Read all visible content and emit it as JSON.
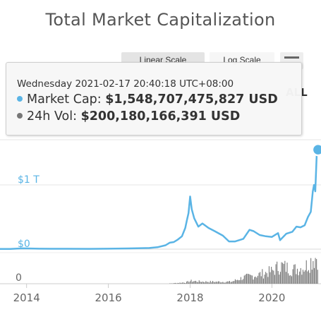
{
  "title": "Total Market Capitalization",
  "controls": {
    "linear_label": "Linear Scale",
    "log_label": "Log Scale",
    "range_label": "ALL"
  },
  "tooltip": {
    "date": "Wednesday 2021-02-17 20:40:18 UTC+08:00",
    "series1_label": "Market Cap:",
    "series1_value": "$1,548,707,475,827 USD",
    "series2_label": "24h Vol:",
    "series2_value": "$200,180,166,391 USD"
  },
  "colors": {
    "market_cap": "#5ab4e5",
    "volume": "#777777",
    "title": "#555555"
  },
  "chart_data": {
    "type": "line",
    "title": "Total Market Capitalization",
    "xlabel": "",
    "ylabel": "",
    "x_ticks": [
      "2014",
      "2016",
      "2018",
      "2020"
    ],
    "y_ticks": [
      "$0",
      "$1 T"
    ],
    "volume_y_ticks": [
      "0"
    ],
    "xlim": [
      2013.35,
      2021.2
    ],
    "ylim_trillions": [
      0,
      1.75
    ],
    "grid": true,
    "legend": "none",
    "series": [
      {
        "name": "Market Cap",
        "unit": "USD trillions",
        "x": [
          2013.35,
          2013.6,
          2013.9,
          2014.0,
          2014.3,
          2014.6,
          2015.0,
          2015.5,
          2016.0,
          2016.5,
          2017.0,
          2017.2,
          2017.4,
          2017.5,
          2017.6,
          2017.7,
          2017.8,
          2017.88,
          2017.92,
          2017.96,
          2018.0,
          2018.04,
          2018.1,
          2018.2,
          2018.3,
          2018.45,
          2018.6,
          2018.8,
          2018.95,
          2019.1,
          2019.3,
          2019.45,
          2019.55,
          2019.7,
          2019.85,
          2020.0,
          2020.15,
          2020.2,
          2020.35,
          2020.5,
          2020.6,
          2020.7,
          2020.8,
          2020.88,
          2020.95,
          2021.0,
          2021.03,
          2021.06,
          2021.1,
          2021.13
        ],
        "values": [
          0.002,
          0.003,
          0.012,
          0.011,
          0.007,
          0.006,
          0.005,
          0.004,
          0.007,
          0.011,
          0.018,
          0.03,
          0.06,
          0.1,
          0.11,
          0.15,
          0.2,
          0.33,
          0.45,
          0.56,
          0.82,
          0.62,
          0.48,
          0.35,
          0.4,
          0.33,
          0.28,
          0.21,
          0.12,
          0.12,
          0.16,
          0.3,
          0.28,
          0.22,
          0.2,
          0.19,
          0.25,
          0.14,
          0.24,
          0.27,
          0.35,
          0.34,
          0.37,
          0.5,
          0.58,
          0.9,
          1.0,
          0.9,
          1.55,
          1.55
        ]
      },
      {
        "name": "24h Vol",
        "unit": "USD billions",
        "x": [
          2013.35,
          2014.0,
          2015.0,
          2016.0,
          2017.0,
          2017.5,
          2017.9,
          2018.0,
          2018.3,
          2018.6,
          2019.0,
          2019.3,
          2019.6,
          2020.0,
          2020.2,
          2020.5,
          2020.8,
          2021.0,
          2021.13
        ],
        "values": [
          0.05,
          0.1,
          0.1,
          0.2,
          0.5,
          2,
          10,
          20,
          15,
          14,
          14,
          45,
          60,
          90,
          130,
          100,
          120,
          180,
          200
        ]
      }
    ],
    "highlight": {
      "series": "Market Cap",
      "x": 2021.13,
      "value": 1.5487
    }
  }
}
